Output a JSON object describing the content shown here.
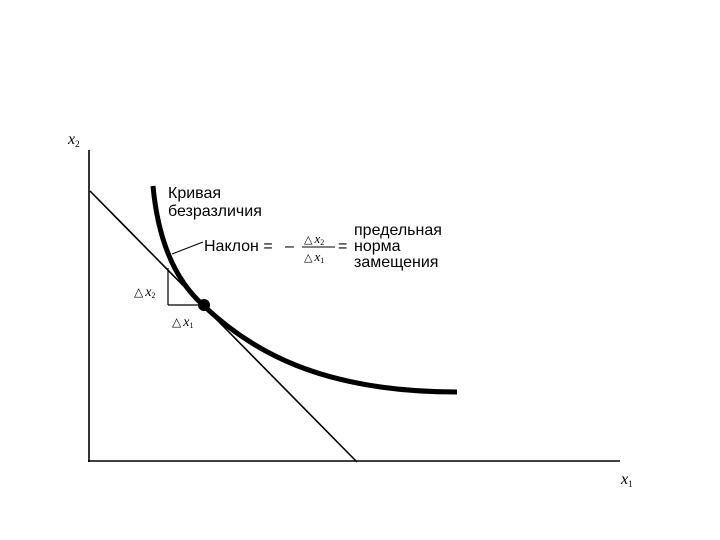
{
  "axes": {
    "x_label": "x",
    "x_sub": "1",
    "y_label": "x",
    "y_sub": "2"
  },
  "curve_label": {
    "line1": "Кривая",
    "line2": "безразличия"
  },
  "slope_formula": {
    "prefix": "Наклон =",
    "minus": "–",
    "delta": "△",
    "num_var": "x",
    "num_sub": "2",
    "den_var": "x",
    "den_sub": "1",
    "equals": "="
  },
  "mrs_label": {
    "line1": "предельная",
    "line2": "норма",
    "line3": "замещения"
  },
  "delta_labels": {
    "dx2_delta": "△",
    "dx2_var": "x",
    "dx2_sub": "2",
    "dx1_delta": "△",
    "dx1_var": "x",
    "dx1_sub": "1"
  },
  "colors": {
    "ink": "#000000",
    "background": "#ffffff"
  }
}
